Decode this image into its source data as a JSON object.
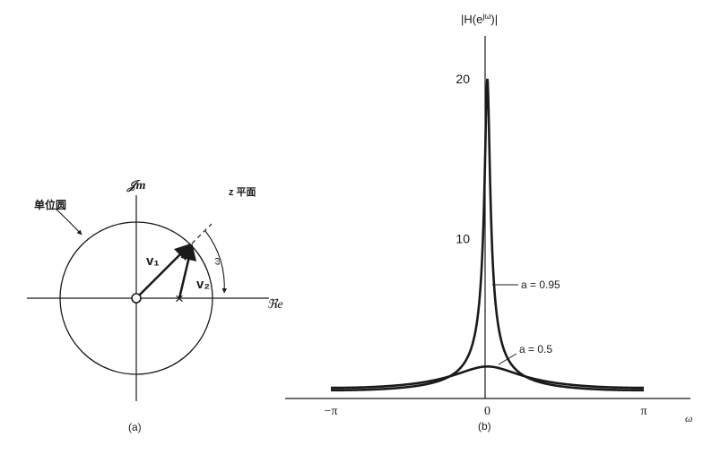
{
  "panel_a": {
    "imag_axis_label": "𝒥m",
    "real_axis_label": "ℜe",
    "unit_circle_label": "单位圆",
    "plane_label": "z 平面",
    "v1_label": "v₁",
    "v2_label": "v₂",
    "omega_label": "ω",
    "pole_marker": "×",
    "caption": "(a)"
  },
  "panel_b": {
    "y_axis_title": "|H(e^{jω})|",
    "y_ticks": [
      "20",
      "10"
    ],
    "x_ticks": [
      "−π",
      "0",
      "π"
    ],
    "x_axis_label": "ω",
    "caption": "(b)"
  },
  "chart_data": {
    "type": "line",
    "x_range": [
      -3.1416,
      3.1416
    ],
    "ylim": [
      0,
      20
    ],
    "series": [
      {
        "name": "a = 0.95",
        "a": 0.95,
        "label": "a = 0.95"
      },
      {
        "name": "a = 0.5",
        "a": 0.5,
        "label": "a = 0.5"
      }
    ]
  }
}
